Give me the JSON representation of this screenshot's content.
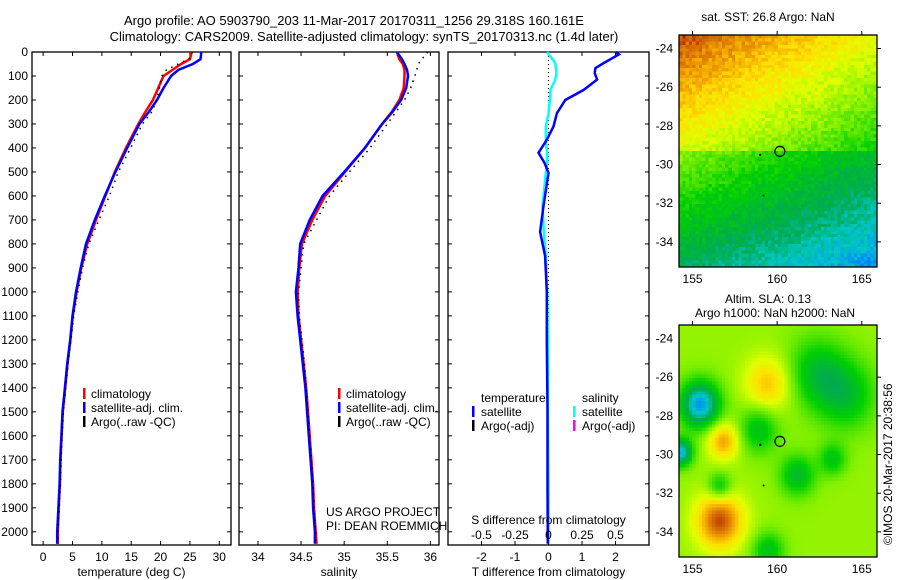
{
  "title": {
    "line1": "Argo profile: AO 5903790_203 11-Mar-2017 20170311_1256 29.318S 160.161E",
    "line2": "Climatology: CARS2009. Satellite-adjusted climatology: synTS_20170313.nc (1.4d later)"
  },
  "colors": {
    "climatology": "#ff0000",
    "satellite": "#0000ff",
    "argo": "#000000",
    "s_satellite": "#00ffff",
    "s_argo": "#ff00ff"
  },
  "credit": "©IMOS 20-Mar-2017 20:38:56",
  "chart_data": [
    {
      "type": "line",
      "name": "temperature",
      "xlabel": "temperature (deg C)",
      "ylabel": "",
      "xlim": [
        -1.9,
        32
      ],
      "ylim": [
        2055,
        0
      ],
      "xticks": [
        "0",
        "5",
        "10",
        "15",
        "20",
        "25",
        "30"
      ],
      "yticks": [
        "0",
        "100",
        "200",
        "300",
        "400",
        "500",
        "600",
        "700",
        "800",
        "900",
        "1000",
        "1100",
        "1200",
        "1300",
        "1400",
        "1500",
        "1600",
        "1700",
        "1800",
        "1900",
        "2000"
      ],
      "depth": [
        0,
        10,
        30,
        50,
        75,
        100,
        150,
        200,
        250,
        300,
        400,
        500,
        600,
        700,
        800,
        900,
        1000,
        1100,
        1200,
        1300,
        1400,
        1500,
        1600,
        1700,
        1800,
        1900,
        2000,
        2050
      ],
      "series": [
        {
          "name": "climatology",
          "style": "solid",
          "values": [
            25.2,
            25.2,
            25.0,
            23.5,
            22.0,
            20.5,
            19.6,
            18.7,
            17.4,
            16.2,
            14.1,
            12.2,
            10.6,
            9.0,
            7.5,
            6.5,
            5.7,
            5.05,
            4.65,
            4.15,
            3.75,
            3.35,
            3.15,
            2.95,
            2.85,
            2.65,
            2.5,
            2.5
          ]
        },
        {
          "name": "satellite-adj. clim.",
          "style": "solid",
          "values": [
            26.9,
            26.9,
            26.8,
            25.5,
            23.0,
            21.8,
            20.5,
            19.4,
            18.0,
            16.4,
            14.3,
            12.3,
            10.5,
            8.8,
            7.3,
            6.4,
            5.6,
            5.0,
            4.6,
            4.1,
            3.7,
            3.3,
            3.1,
            2.9,
            2.8,
            2.6,
            2.4,
            2.4
          ]
        },
        {
          "name": "Argo(..raw -QC)",
          "style": "dotted",
          "values": [
            25.4,
            25.3,
            24.8,
            23.0,
            21.0,
            20.2,
            19.8,
            19.3,
            18.5,
            16.9,
            14.9,
            12.8,
            11.3,
            9.5,
            7.8,
            6.7,
            5.9,
            5.2,
            4.75,
            4.25,
            3.85,
            3.45,
            3.25,
            3.05,
            2.95,
            2.75,
            2.55,
            2.55
          ]
        }
      ],
      "legend": "center-left"
    },
    {
      "type": "line",
      "name": "salinity",
      "xlabel": "salinity",
      "xlim": [
        33.78,
        36.1
      ],
      "ylim": [
        2055,
        0
      ],
      "xticks": [
        "34",
        "34.5",
        "35",
        "35.5",
        "36"
      ],
      "depth": [
        0,
        10,
        30,
        50,
        75,
        100,
        150,
        200,
        250,
        300,
        400,
        500,
        600,
        700,
        800,
        900,
        1000,
        1100,
        1200,
        1300,
        1400,
        1500,
        1600,
        1700,
        1800,
        1900,
        2000,
        2050
      ],
      "series": [
        {
          "name": "climatology",
          "style": "solid",
          "values": [
            35.62,
            35.62,
            35.64,
            35.68,
            35.7,
            35.7,
            35.69,
            35.64,
            35.55,
            35.44,
            35.24,
            35.01,
            34.78,
            34.63,
            34.51,
            34.48,
            34.46,
            34.47,
            34.5,
            34.53,
            34.56,
            34.58,
            34.6,
            34.62,
            34.64,
            34.65,
            34.67,
            34.68
          ]
        },
        {
          "name": "satellite-adj. clim.",
          "style": "solid",
          "values": [
            35.61,
            35.63,
            35.67,
            35.7,
            35.73,
            35.74,
            35.72,
            35.66,
            35.56,
            35.44,
            35.24,
            35.0,
            34.75,
            34.6,
            34.49,
            34.47,
            34.44,
            34.46,
            34.49,
            34.52,
            34.55,
            34.57,
            34.59,
            34.61,
            34.63,
            34.64,
            34.66,
            34.66
          ]
        },
        {
          "name": "Argo(..raw -QC)",
          "style": "dotted",
          "values": [
            35.97,
            35.95,
            35.9,
            35.86,
            35.84,
            35.82,
            35.77,
            35.7,
            35.6,
            35.5,
            35.3,
            35.06,
            34.83,
            34.68,
            34.53,
            34.5,
            34.47,
            34.48,
            34.51,
            34.54,
            34.56,
            34.58,
            34.6,
            34.62,
            34.64,
            34.65,
            34.67,
            34.67
          ]
        }
      ],
      "legend": "center-right",
      "annotation": [
        "US ARGO PROJECT",
        "PI: DEAN ROEMMICH"
      ]
    },
    {
      "type": "line",
      "name": "difference",
      "xlabel": "T difference from climatology",
      "x2label": "S difference from climatology",
      "xlim": [
        -3,
        3
      ],
      "x2lim": [
        -0.75,
        0.75
      ],
      "ylim": [
        2055,
        0
      ],
      "xticks": [
        "-2",
        "-1",
        "0",
        "1",
        "2"
      ],
      "x2ticks": [
        "-0.5",
        "-0.25",
        "0",
        "0.25",
        "0.5"
      ],
      "depth": [
        0,
        10,
        30,
        46,
        67,
        88,
        115,
        158,
        200,
        255,
        310,
        366,
        420,
        462,
        504,
        642,
        750,
        850,
        1000,
        1200,
        1500,
        1800,
        2050
      ],
      "series": [
        {
          "name": "temperature satellite",
          "axis": "T",
          "values": [
            2.0,
            2.1,
            1.85,
            1.65,
            1.4,
            1.38,
            1.45,
            1.05,
            0.5,
            0.25,
            0.15,
            -0.05,
            -0.3,
            -0.12,
            0.0,
            -0.15,
            -0.25,
            -0.1,
            -0.05,
            -0.05,
            -0.03,
            -0.03,
            -0.02
          ]
        },
        {
          "name": "salinity satellite",
          "axis": "S",
          "values": [
            -0.01,
            0.0,
            0.03,
            0.05,
            0.055,
            0.06,
            0.05,
            0.015,
            0.01,
            0.0,
            -0.02,
            -0.02,
            -0.01,
            -0.01,
            -0.02,
            -0.045,
            -0.035,
            -0.02,
            -0.01,
            -0.005,
            -0.005,
            0.0,
            0.0
          ]
        },
        {
          "name": "temperature Argo(-adj)",
          "axis": "T",
          "values": []
        },
        {
          "name": "salinity Argo(-adj)",
          "axis": "S",
          "values": []
        }
      ],
      "legend_headers": [
        "temperature",
        "salinity"
      ],
      "legend_items": [
        "satellite",
        "Argo(-adj)",
        "satellite",
        "Argo(-adj)"
      ]
    },
    {
      "type": "heatmap",
      "name": "sst-map",
      "title": "sat. SST: 26.8 Argo: NaN",
      "xlim": [
        154.2,
        165.9
      ],
      "ylim": [
        -35.3,
        -23.3
      ],
      "xticks": [
        "155",
        "160",
        "165"
      ],
      "yticks": [
        "-24",
        "-26",
        "-28",
        "-30",
        "-32",
        "-34"
      ],
      "marker": {
        "lon": 160.161,
        "lat": -29.318
      }
    },
    {
      "type": "heatmap",
      "name": "sla-map",
      "title": [
        "Altim. SLA: 0.13",
        "Argo h1000: NaN h2000: NaN"
      ],
      "xlim": [
        154.2,
        165.9
      ],
      "ylim": [
        -35.3,
        -23.3
      ],
      "xticks": [
        "155",
        "160",
        "165"
      ],
      "yticks": [
        "-24",
        "-26",
        "-28",
        "-30",
        "-32",
        "-34"
      ],
      "marker": {
        "lon": 160.161,
        "lat": -29.318
      }
    }
  ]
}
